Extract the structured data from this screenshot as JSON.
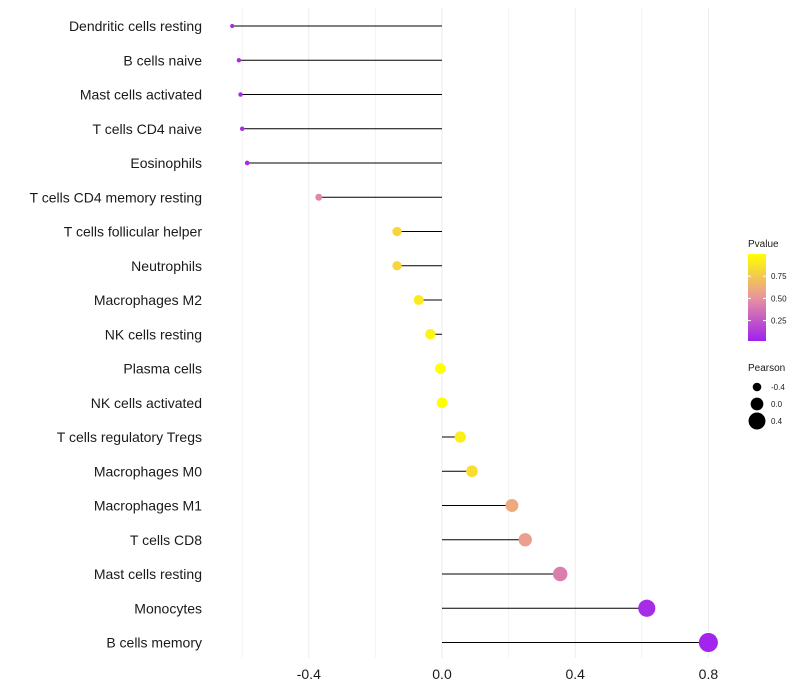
{
  "chart_data": {
    "type": "lollipop",
    "xlim": [
      -0.6,
      0.82
    ],
    "x_ticks": [
      -0.4,
      0.0,
      0.4,
      0.8
    ],
    "x_tick_labels": [
      "-0.4",
      "0.0",
      "0.4",
      "0.8"
    ],
    "grid": true,
    "categories": [
      "Dendritic cells resting",
      "B cells naive",
      "Mast cells activated",
      "T cells CD4 naive",
      "Eosinophils",
      "T cells CD4 memory resting",
      "T cells follicular helper",
      "Neutrophils",
      "Macrophages M2",
      "NK cells resting",
      "Plasma cells",
      "NK cells activated",
      "T cells regulatory  Tregs ",
      "Macrophages M0",
      "Macrophages M1",
      "T cells CD8",
      "Mast cells resting",
      "Monocytes",
      "B cells memory"
    ],
    "pearson": [
      -0.63,
      -0.61,
      -0.605,
      -0.6,
      -0.585,
      -0.37,
      -0.135,
      -0.135,
      -0.07,
      -0.035,
      -0.005,
      0.0,
      0.055,
      0.09,
      0.21,
      0.25,
      0.355,
      0.615,
      0.8
    ],
    "pvalue": [
      0.05,
      0.05,
      0.05,
      0.05,
      0.05,
      0.45,
      0.8,
      0.8,
      0.9,
      0.95,
      1.0,
      1.0,
      0.92,
      0.85,
      0.6,
      0.55,
      0.4,
      0.05,
      0.02
    ],
    "legend": {
      "color_title": "Pvalue",
      "color_ticks": [
        0.25,
        0.5,
        0.75
      ],
      "color_tick_labels": [
        "0.25",
        "0.50",
        "0.75"
      ],
      "color_low": "#a020f0",
      "color_mid": "#e8959c",
      "color_high": "#ffff00",
      "size_title": "Pearson",
      "size_values": [
        -0.4,
        0.0,
        0.4
      ],
      "size_labels": [
        "-0.4",
        "0.0",
        "0.4"
      ]
    }
  }
}
